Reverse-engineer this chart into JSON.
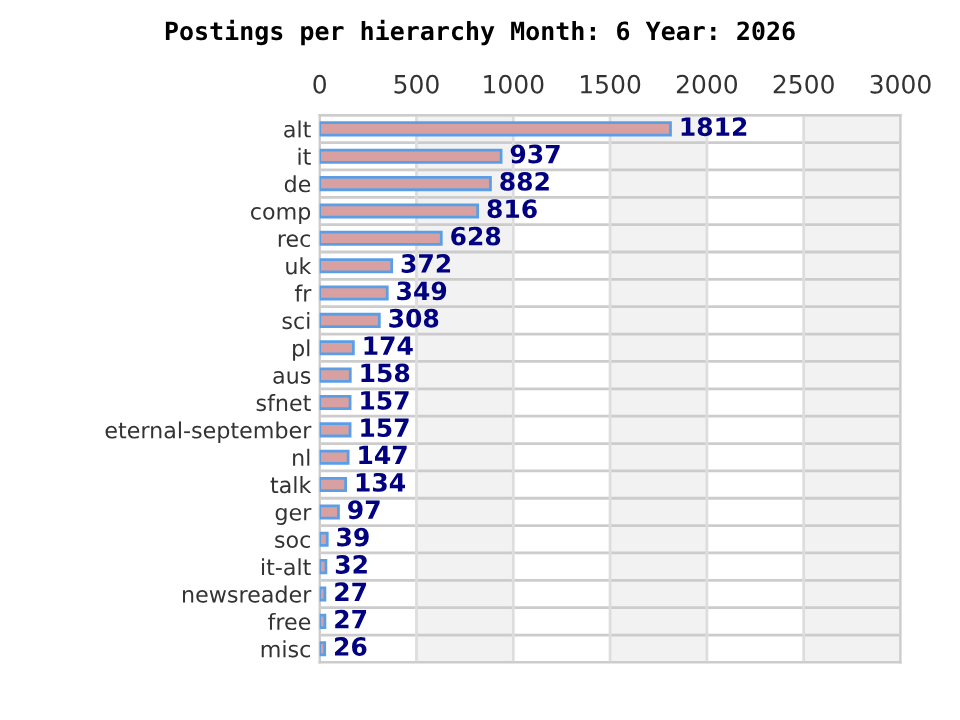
{
  "chart_data": {
    "type": "bar",
    "orientation": "horizontal",
    "title": "Postings per hierarchy Month: 6 Year: 2026",
    "categories": [
      "alt",
      "it",
      "de",
      "comp",
      "rec",
      "uk",
      "fr",
      "sci",
      "pl",
      "aus",
      "sfnet",
      "eternal-september",
      "nl",
      "talk",
      "ger",
      "soc",
      "it-alt",
      "newsreader",
      "free",
      "misc"
    ],
    "values": [
      1812,
      937,
      882,
      816,
      628,
      372,
      349,
      308,
      174,
      158,
      157,
      157,
      147,
      134,
      97,
      39,
      32,
      27,
      27,
      26
    ],
    "color": "#d8a0a0",
    "xlim": [
      0,
      3000
    ],
    "xticks": [
      0,
      500,
      1000,
      1500,
      2000,
      2500,
      3000
    ],
    "bands": [
      {
        "axis": "x",
        "from": 500,
        "to": 1000,
        "color": "#f2f2f2"
      },
      {
        "axis": "x",
        "from": 1500,
        "to": 2000,
        "color": "#f2f2f2"
      },
      {
        "axis": "x",
        "from": 2500,
        "to": 3000,
        "color": "#f2f2f2"
      }
    ],
    "grid": true,
    "data_labels": true,
    "legend": false
  }
}
